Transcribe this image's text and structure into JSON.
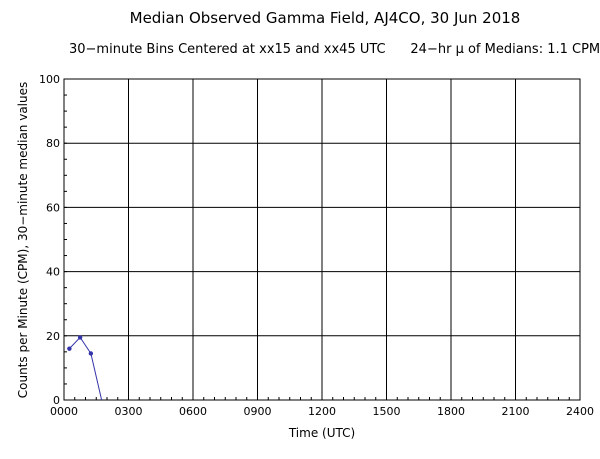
{
  "chart_data": {
    "type": "line",
    "title": "Median Observed Gamma Field, AJ4CO, 30 Jun 2018",
    "subtitle": "30−minute Bins Centered at xx15 and xx45 UTC      24−hr μ of Medians: 1.1 CPM",
    "xlabel": "Time (UTC)",
    "ylabel": "Counts per Minute (CPM), 30−minute median values",
    "xlim": [
      0,
      2400
    ],
    "ylim": [
      0,
      100
    ],
    "x_ticks": [
      "0000",
      "0300",
      "0600",
      "0900",
      "1200",
      "1500",
      "1800",
      "2100",
      "2400"
    ],
    "y_ticks": [
      "0",
      "20",
      "40",
      "60",
      "80",
      "100"
    ],
    "grid": true,
    "x_hours": [
      0.25,
      0.75,
      1.25,
      1.75
    ],
    "y_values": [
      16,
      19.5,
      14.5,
      0
    ],
    "colors": {
      "line": "#3333aa",
      "marker": "#3333aa",
      "grid": "#000000"
    }
  }
}
